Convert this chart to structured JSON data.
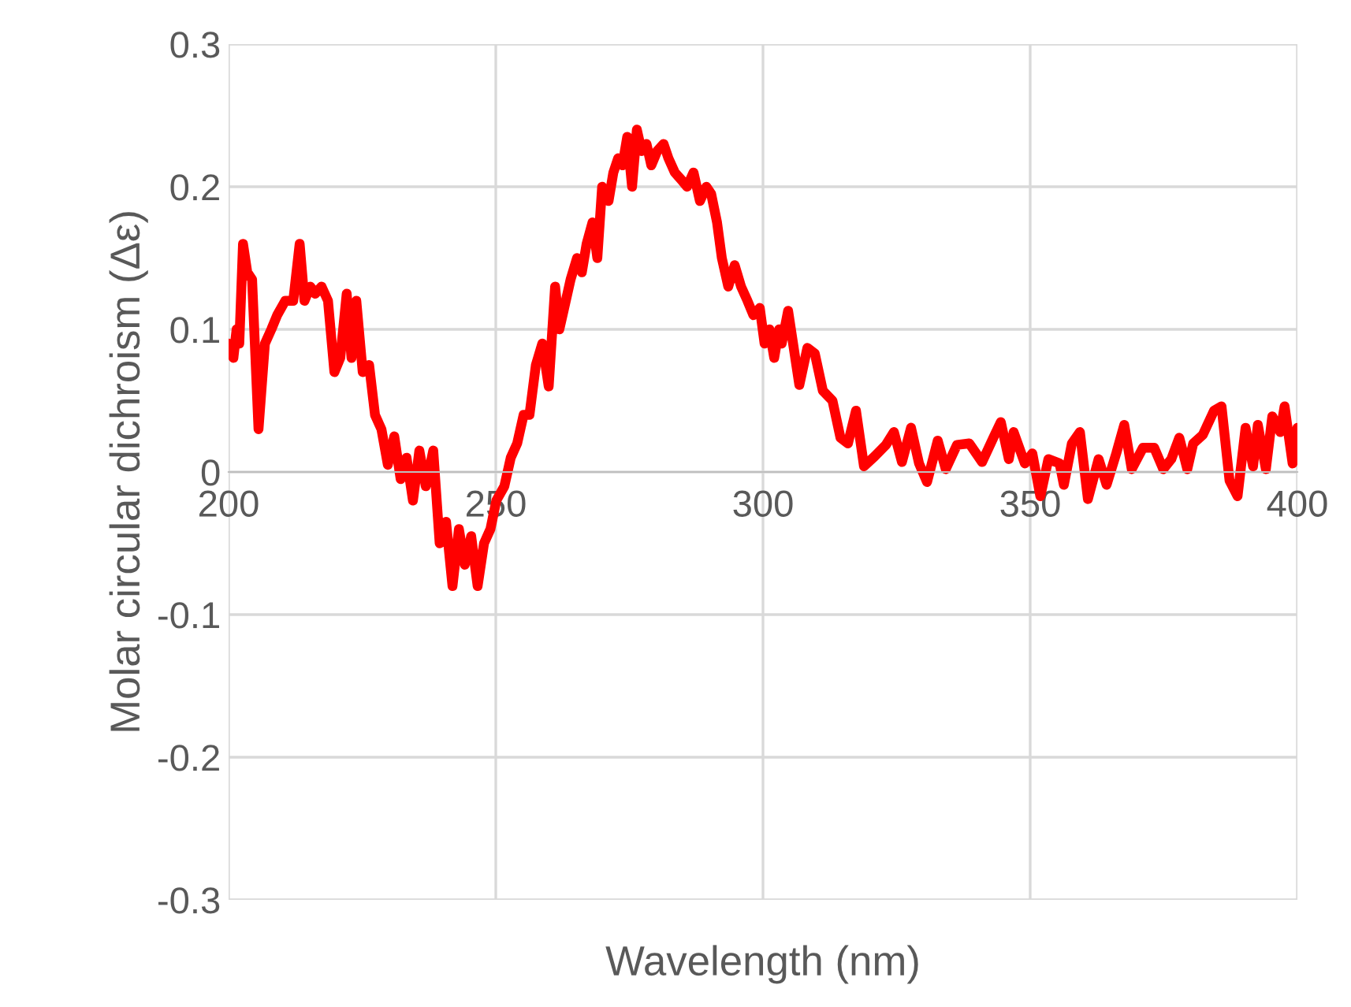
{
  "chart_data": {
    "type": "line",
    "xlabel": "Wavelength (nm)",
    "ylabel": "Molar circular dichroism (Δε)",
    "xlim": [
      200,
      400
    ],
    "xticks": [
      200,
      250,
      300,
      350,
      400
    ],
    "ylim": [
      -0.3,
      0.3
    ],
    "yticks": [
      -0.3,
      -0.2,
      -0.1,
      0,
      0.1,
      0.2,
      0.3
    ],
    "grid": true,
    "legend": false,
    "line_style": "solid",
    "marker": "none",
    "series": [
      {
        "color": "#ff0000",
        "x": [
          200,
          200.9,
          201.5,
          202,
          202.7,
          203.5,
          204.4,
          205.6,
          206.8,
          208,
          209.1,
          210.6,
          212.1,
          213.3,
          214.2,
          215.3,
          216.2,
          217.4,
          218.6,
          219.8,
          220.9,
          222.1,
          223,
          223.9,
          225.1,
          226.3,
          227.4,
          228.6,
          229.8,
          231,
          232.2,
          233.3,
          234.5,
          235.7,
          236.9,
          238.3,
          239.5,
          240.7,
          241.9,
          243.1,
          244.2,
          245.4,
          246.6,
          247.8,
          249,
          250.1,
          251.6,
          252.8,
          254,
          255.2,
          256.3,
          257.5,
          258.7,
          259.9,
          261.1,
          261.9,
          262.8,
          264,
          265.2,
          266.1,
          267,
          268.1,
          269,
          269.9,
          271.1,
          272,
          272.9,
          273.7,
          274.6,
          275.5,
          276.4,
          277.3,
          278.2,
          279.1,
          280.2,
          281.4,
          282.3,
          283.5,
          284.7,
          285.8,
          287,
          288.2,
          289.4,
          290.3,
          291.4,
          292.3,
          293.5,
          294.7,
          295.9,
          297.1,
          298.2,
          299.4,
          300.3,
          301.2,
          302.1,
          303,
          303.5,
          304.7,
          306.8,
          308.3,
          309.7,
          311.2,
          313,
          314.5,
          315.9,
          317.4,
          318.9,
          320.9,
          323,
          324.5,
          326,
          327.7,
          329.2,
          330.7,
          332.7,
          334.2,
          336.3,
          338.6,
          341,
          343.1,
          344.5,
          346,
          346.9,
          349,
          350.4,
          351.9,
          353.4,
          355.5,
          356.3,
          357.8,
          359.3,
          360.8,
          362.8,
          364.3,
          366.1,
          367.6,
          369,
          371.1,
          373.2,
          374.9,
          376.4,
          377.9,
          379.4,
          380.5,
          382.3,
          384.4,
          385.8,
          387.3,
          388.8,
          390.3,
          391.7,
          392.6,
          394.1,
          395.3,
          396.8,
          397.6,
          399.1,
          400
        ],
        "values": [
          0.09,
          0.08,
          0.1,
          0.09,
          0.16,
          0.14,
          0.135,
          0.03,
          0.09,
          0.1,
          0.11,
          0.12,
          0.12,
          0.16,
          0.12,
          0.13,
          0.125,
          0.13,
          0.12,
          0.07,
          0.08,
          0.125,
          0.08,
          0.12,
          0.07,
          0.075,
          0.04,
          0.03,
          0.005,
          0.025,
          -0.005,
          0.01,
          -0.02,
          0.015,
          -0.01,
          0.015,
          -0.05,
          -0.035,
          -0.08,
          -0.04,
          -0.065,
          -0.045,
          -0.08,
          -0.05,
          -0.04,
          -0.02,
          -0.01,
          0.01,
          0.02,
          0.04,
          0.04,
          0.075,
          0.09,
          0.06,
          0.13,
          0.1,
          0.115,
          0.135,
          0.15,
          0.14,
          0.16,
          0.175,
          0.15,
          0.2,
          0.19,
          0.21,
          0.22,
          0.215,
          0.235,
          0.2,
          0.24,
          0.225,
          0.23,
          0.215,
          0.225,
          0.23,
          0.22,
          0.21,
          0.205,
          0.2,
          0.21,
          0.19,
          0.2,
          0.195,
          0.175,
          0.15,
          0.13,
          0.145,
          0.13,
          0.12,
          0.11,
          0.115,
          0.09,
          0.1,
          0.08,
          0.1,
          0.09,
          0.113,
          0.061,
          0.087,
          0.083,
          0.057,
          0.05,
          0.024,
          0.02,
          0.043,
          0.004,
          0.011,
          0.019,
          0.028,
          0.007,
          0.031,
          0.006,
          -0.007,
          0.022,
          0.002,
          0.019,
          0.02,
          0.007,
          0.024,
          0.035,
          0.009,
          0.028,
          0.006,
          0.013,
          -0.017,
          0.009,
          0.006,
          -0.009,
          0.02,
          0.028,
          -0.019,
          0.009,
          -0.009,
          0.013,
          0.033,
          0.002,
          0.017,
          0.017,
          0.002,
          0.009,
          0.024,
          0.002,
          0.02,
          0.026,
          0.043,
          0.046,
          -0.006,
          -0.017,
          0.031,
          0.004,
          0.033,
          0.002,
          0.039,
          0.028,
          0.046,
          0.006,
          0.031
        ]
      }
    ]
  }
}
